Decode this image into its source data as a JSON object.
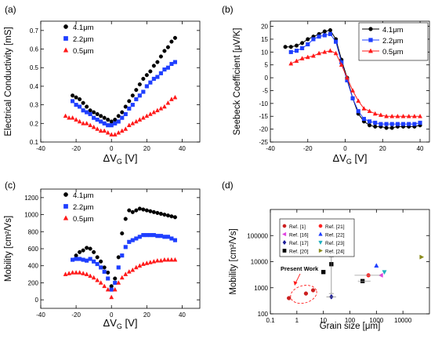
{
  "chart_data": [
    {
      "panel_label": "(a)",
      "type": "scatter",
      "xlabel_main": "ΔV",
      "xlabel_sub": "G",
      "xlabel_unit": " [V]",
      "ylabel": "Electrical Conductivity [mS]",
      "xlim": [
        -40,
        50
      ],
      "ylim": [
        0.1,
        0.75
      ],
      "xticks": [
        -40,
        -20,
        0,
        20,
        40
      ],
      "yticks": [
        0.1,
        0.2,
        0.3,
        0.4,
        0.5,
        0.6,
        0.7
      ],
      "ytick_decimals": 1,
      "legend": "top-left",
      "series": [
        {
          "name": "4.1μm",
          "color": "#000000",
          "marker": "circle",
          "x": [
            -22,
            -20,
            -18,
            -16,
            -14,
            -12,
            -10,
            -8,
            -6,
            -4,
            -2,
            0,
            2,
            4,
            6,
            8,
            10,
            12,
            14,
            16,
            18,
            20,
            22,
            24,
            26,
            28,
            30,
            32,
            34,
            36
          ],
          "y": [
            0.35,
            0.34,
            0.33,
            0.31,
            0.29,
            0.27,
            0.26,
            0.25,
            0.24,
            0.23,
            0.22,
            0.21,
            0.22,
            0.24,
            0.26,
            0.29,
            0.32,
            0.35,
            0.38,
            0.41,
            0.44,
            0.46,
            0.48,
            0.51,
            0.53,
            0.56,
            0.59,
            0.61,
            0.64,
            0.66
          ]
        },
        {
          "name": "2.2μm",
          "color": "#1f3fff",
          "marker": "square",
          "x": [
            -22,
            -20,
            -18,
            -16,
            -14,
            -12,
            -10,
            -8,
            -6,
            -4,
            -2,
            0,
            2,
            4,
            6,
            8,
            10,
            12,
            14,
            16,
            18,
            20,
            22,
            24,
            26,
            28,
            30,
            32,
            34,
            36
          ],
          "y": [
            0.32,
            0.3,
            0.29,
            0.27,
            0.26,
            0.25,
            0.23,
            0.22,
            0.21,
            0.2,
            0.19,
            0.19,
            0.2,
            0.21,
            0.23,
            0.25,
            0.28,
            0.3,
            0.33,
            0.35,
            0.37,
            0.4,
            0.42,
            0.44,
            0.45,
            0.47,
            0.49,
            0.5,
            0.52,
            0.53
          ]
        },
        {
          "name": "0.5μm",
          "color": "#ff1a1a",
          "marker": "triangle",
          "x": [
            -26,
            -24,
            -22,
            -20,
            -18,
            -16,
            -14,
            -12,
            -10,
            -8,
            -6,
            -4,
            -2,
            0,
            2,
            4,
            6,
            8,
            10,
            12,
            14,
            16,
            18,
            20,
            22,
            24,
            26,
            28,
            30,
            32,
            34,
            36
          ],
          "y": [
            0.24,
            0.23,
            0.23,
            0.22,
            0.21,
            0.2,
            0.2,
            0.19,
            0.18,
            0.17,
            0.16,
            0.16,
            0.15,
            0.14,
            0.14,
            0.15,
            0.16,
            0.17,
            0.19,
            0.2,
            0.21,
            0.22,
            0.23,
            0.24,
            0.25,
            0.26,
            0.27,
            0.28,
            0.29,
            0.31,
            0.33,
            0.34
          ]
        }
      ]
    },
    {
      "panel_label": "(b)",
      "type": "line",
      "xlabel_main": "ΔV",
      "xlabel_sub": "G",
      "xlabel_unit": " [V]",
      "ylabel": "Seebeck Coefficient [μV/K]",
      "xlim": [
        -40,
        45
      ],
      "ylim": [
        -25,
        22
      ],
      "xticks": [
        -40,
        -20,
        0,
        20,
        40
      ],
      "yticks": [
        -25,
        -20,
        -15,
        -10,
        -5,
        0,
        5,
        10,
        15,
        20
      ],
      "ytick_decimals": 0,
      "legend": "top-right",
      "series": [
        {
          "name": "4.1μm",
          "color": "#000000",
          "marker": "circle",
          "x": [
            -32,
            -29,
            -26,
            -23,
            -20,
            -17,
            -14,
            -11,
            -8,
            -5,
            -2,
            1,
            4,
            7,
            10,
            13,
            16,
            19,
            22,
            25,
            28,
            31,
            34,
            37,
            40
          ],
          "y": [
            12,
            12,
            12.5,
            13.5,
            15,
            16,
            17,
            18,
            18.5,
            15,
            7,
            0,
            -8,
            -14,
            -17,
            -18.5,
            -19,
            -19,
            -19.5,
            -19.5,
            -19,
            -19,
            -19,
            -19,
            -18.5
          ]
        },
        {
          "name": "2.2μm",
          "color": "#1f3fff",
          "marker": "square",
          "x": [
            -29,
            -26,
            -23,
            -20,
            -17,
            -14,
            -11,
            -8,
            -5,
            -2,
            1,
            4,
            7,
            10,
            13,
            16,
            19,
            22,
            25,
            28,
            31,
            34,
            37,
            40
          ],
          "y": [
            10,
            10.5,
            11.5,
            13,
            15,
            16,
            16.5,
            17,
            14,
            6,
            -1,
            -8,
            -13,
            -16,
            -17,
            -17.5,
            -18,
            -18,
            -18,
            -18,
            -18,
            -18,
            -18,
            -17.5
          ]
        },
        {
          "name": "0.5μm",
          "color": "#ff1a1a",
          "marker": "triangle",
          "x": [
            -29,
            -26,
            -23,
            -20,
            -17,
            -14,
            -11,
            -8,
            -5,
            -2,
            1,
            4,
            7,
            10,
            13,
            16,
            19,
            22,
            25,
            28,
            31,
            34,
            37,
            40
          ],
          "y": [
            5.5,
            6.5,
            7.5,
            8,
            8.5,
            9.5,
            10,
            10.5,
            9.5,
            5,
            0,
            -5,
            -9,
            -12,
            -13,
            -14,
            -14.5,
            -15,
            -15,
            -15,
            -15,
            -15,
            -15,
            -15
          ]
        }
      ]
    },
    {
      "panel_label": "(c)",
      "type": "scatter",
      "xlabel_main": "ΔV",
      "xlabel_sub": "G",
      "xlabel_unit": " [V]",
      "ylabel": "Mobility [cm²/Vs]",
      "xlim": [
        -40,
        50
      ],
      "ylim": [
        -100,
        1300
      ],
      "xticks": [
        -40,
        -20,
        0,
        20,
        40
      ],
      "yticks": [
        0,
        200,
        400,
        600,
        800,
        1000,
        1200
      ],
      "ytick_decimals": 0,
      "legend": "top-left",
      "series": [
        {
          "name": "4.1μm",
          "color": "#000000",
          "marker": "circle",
          "x": [
            -20,
            -18,
            -16,
            -14,
            -12,
            -10,
            -8,
            -6,
            -4,
            -2,
            0,
            2,
            4,
            6,
            8,
            10,
            12,
            14,
            16,
            18,
            20,
            22,
            24,
            26,
            28,
            30,
            32,
            34,
            36
          ],
          "y": [
            520,
            560,
            580,
            610,
            600,
            560,
            500,
            450,
            380,
            320,
            160,
            250,
            500,
            780,
            950,
            1050,
            1030,
            1050,
            1070,
            1060,
            1050,
            1040,
            1030,
            1020,
            1010,
            1000,
            990,
            980,
            970
          ]
        },
        {
          "name": "2.2μm",
          "color": "#1f3fff",
          "marker": "square",
          "x": [
            -22,
            -20,
            -18,
            -16,
            -14,
            -12,
            -10,
            -8,
            -6,
            -4,
            -2,
            0,
            2,
            4,
            6,
            8,
            10,
            12,
            14,
            16,
            18,
            20,
            22,
            24,
            26,
            28,
            30,
            32,
            34,
            36
          ],
          "y": [
            470,
            480,
            480,
            470,
            460,
            480,
            450,
            420,
            380,
            330,
            250,
            120,
            200,
            380,
            520,
            620,
            680,
            700,
            720,
            740,
            760,
            760,
            760,
            760,
            750,
            750,
            740,
            740,
            720,
            700
          ]
        },
        {
          "name": "0.5μm",
          "color": "#ff1a1a",
          "marker": "triangle",
          "x": [
            -26,
            -24,
            -22,
            -20,
            -18,
            -16,
            -14,
            -12,
            -10,
            -8,
            -6,
            -4,
            -2,
            0,
            2,
            4,
            6,
            8,
            10,
            12,
            14,
            16,
            18,
            20,
            22,
            24,
            26,
            28,
            30,
            32,
            34,
            36
          ],
          "y": [
            300,
            310,
            320,
            320,
            320,
            310,
            300,
            280,
            260,
            230,
            200,
            160,
            120,
            30,
            120,
            200,
            260,
            300,
            330,
            350,
            380,
            400,
            420,
            430,
            440,
            450,
            460,
            460,
            470,
            470,
            470,
            470
          ]
        }
      ]
    },
    {
      "panel_label": "(d)",
      "type": "scatter",
      "xscale": "log",
      "yscale": "log",
      "xlabel": "Grain size [μm]",
      "ylabel": "Mobility [cm²/Vs]",
      "xlim": [
        0.1,
        100000
      ],
      "ylim": [
        100,
        1000000
      ],
      "xticks": [
        0.1,
        1,
        10,
        100,
        1000,
        10000
      ],
      "yticks": [
        100,
        1000,
        10000,
        100000
      ],
      "annotation": "Present Work",
      "legend": "top-left",
      "series": [
        {
          "name": "Ref. [1]",
          "color": "#cc1f1f",
          "marker": "circle",
          "x": [
            0.5,
            2.2,
            4.1
          ],
          "y": [
            400,
            600,
            800
          ]
        },
        {
          "name": "Ref. [16]",
          "color": "#e040e0",
          "marker": "triangle-left",
          "x": [
            1500
          ],
          "y": [
            3000
          ]
        },
        {
          "name": "Ref. [17]",
          "color": "#1f1f99",
          "marker": "diamond",
          "x": [
            20
          ],
          "y": [
            450
          ]
        },
        {
          "name": "Ref. [20]",
          "color": "#000000",
          "marker": "square",
          "x": [
            10,
            20,
            300
          ],
          "y": [
            4000,
            8000,
            1800
          ]
        },
        {
          "name": "Ref. [21]",
          "color": "#ff2020",
          "marker": "circle",
          "x": [
            500
          ],
          "y": [
            3000
          ]
        },
        {
          "name": "Ref. [22]",
          "color": "#1f3fff",
          "marker": "triangle",
          "x": [
            1000
          ],
          "y": [
            7000
          ]
        },
        {
          "name": "Ref. [23]",
          "color": "#20b0c0",
          "marker": "triangle-down",
          "x": [
            2000
          ],
          "y": [
            4000
          ]
        },
        {
          "name": "Ref. [24]",
          "color": "#8a8a1a",
          "marker": "triangle-right",
          "x": [
            50000
          ],
          "y": [
            15000
          ]
        }
      ]
    }
  ]
}
